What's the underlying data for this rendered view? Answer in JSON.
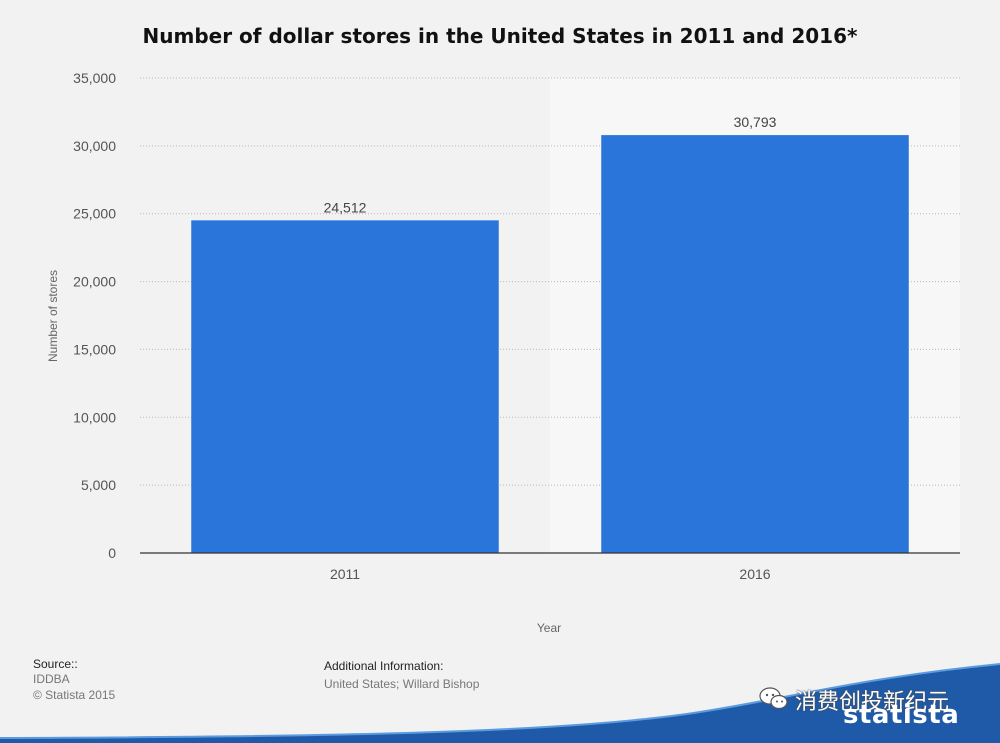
{
  "chart_data": {
    "type": "bar",
    "title": "Number of dollar stores in the United States in 2011 and 2016*",
    "categories": [
      "2011",
      "2016"
    ],
    "values": [
      24512,
      30793
    ],
    "data_labels": [
      "24,512",
      "30,793"
    ],
    "xlabel": "Year",
    "ylabel": "Number of stores",
    "ylim": [
      0,
      35000
    ],
    "yticks": [
      0,
      5000,
      10000,
      15000,
      20000,
      25000,
      30000,
      35000
    ],
    "ytick_labels": [
      "0",
      "5,000",
      "10,000",
      "15,000",
      "20,000",
      "25,000",
      "30,000",
      "35,000"
    ],
    "grid": true,
    "legend": "none",
    "bar_color": "#2a75d9"
  },
  "footer": {
    "source_heading": "Source::",
    "source_name": "IDDBA",
    "copyright": "© Statista 2015",
    "info_heading": "Additional Information:",
    "info_text": "United States; Willard Bishop"
  },
  "branding": {
    "logo_text": "statista",
    "watermark_text": "消费创投新纪元",
    "wave_color": "#1e5aa8"
  },
  "icons": {
    "watermark_icon": "wechat-icon"
  }
}
